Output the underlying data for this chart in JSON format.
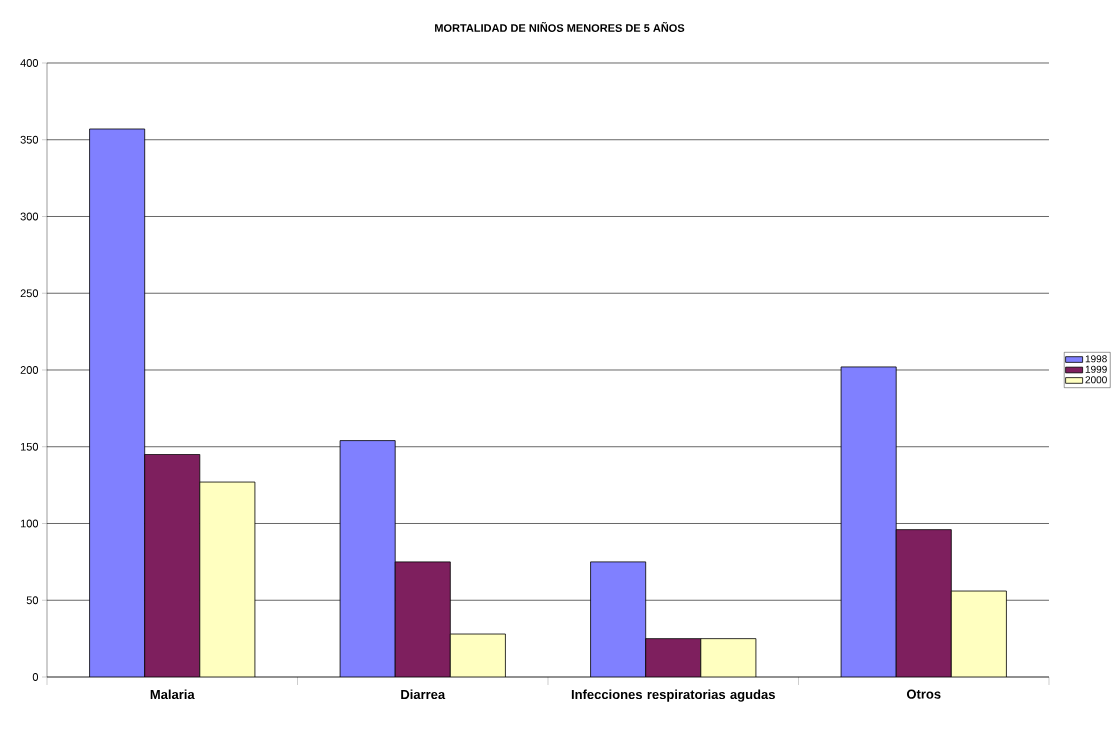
{
  "chart_data": {
    "type": "bar",
    "title": "MORTALIDAD DE NIÑOS MENORES DE 5 AÑOS",
    "categories": [
      "Malaria",
      "Diarrea",
      "Infecciones respiratorias agudas",
      "Otros"
    ],
    "series": [
      {
        "name": "1998",
        "color": "#8080ff",
        "values": [
          357,
          154,
          75,
          202
        ]
      },
      {
        "name": "1999",
        "color": "#7e1f5e",
        "values": [
          145,
          75,
          25,
          96
        ]
      },
      {
        "name": "2000",
        "color": "#ffffc0",
        "values": [
          127,
          28,
          25,
          56
        ]
      }
    ],
    "ylim": [
      0,
      400
    ],
    "yticks": [
      0,
      50,
      100,
      150,
      200,
      250,
      300,
      350,
      400
    ],
    "grid": "y",
    "legend": "right"
  }
}
